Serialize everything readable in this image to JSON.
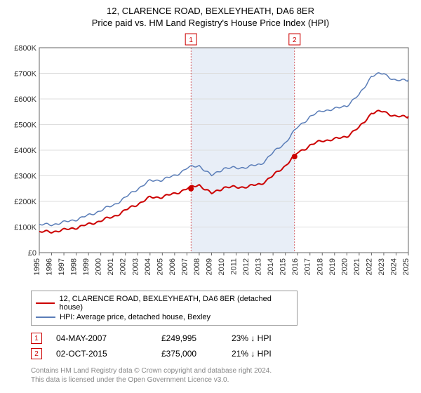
{
  "title": "12, CLARENCE ROAD, BEXLEYHEATH, DA6 8ER",
  "subtitle": "Price paid vs. HM Land Registry's House Price Index (HPI)",
  "chart": {
    "type": "line",
    "background_color": "#ffffff",
    "plot_border_color": "#666666",
    "gridline_color": "#dddddd",
    "highlight_band_color": "#e8eef7",
    "x_axis": {
      "years": [
        1995,
        1996,
        1997,
        1998,
        1999,
        2000,
        2001,
        2002,
        2003,
        2004,
        2005,
        2006,
        2007,
        2008,
        2009,
        2010,
        2011,
        2012,
        2013,
        2014,
        2015,
        2016,
        2017,
        2018,
        2019,
        2020,
        2021,
        2022,
        2023,
        2024,
        2025
      ],
      "label_fontsize": 11,
      "label_color": "#333333"
    },
    "y_axis": {
      "min": 0,
      "max": 800000,
      "tick_step": 100000,
      "tick_labels": [
        "£0",
        "£100K",
        "£200K",
        "£300K",
        "£400K",
        "£500K",
        "£600K",
        "£700K",
        "£800K"
      ],
      "label_fontsize": 11,
      "label_color": "#333333"
    },
    "highlight_band": {
      "from_year": 2007.33,
      "to_year": 2015.75
    },
    "series": [
      {
        "name": "HPI: Average price, detached house, Bexley",
        "color": "#5a7db8",
        "line_width": 1.5,
        "values": [
          [
            1995,
            108000
          ],
          [
            1996,
            110000
          ],
          [
            1997,
            118000
          ],
          [
            1998,
            130000
          ],
          [
            1999,
            145000
          ],
          [
            2000,
            165000
          ],
          [
            2001,
            185000
          ],
          [
            2002,
            215000
          ],
          [
            2003,
            250000
          ],
          [
            2004,
            280000
          ],
          [
            2005,
            285000
          ],
          [
            2006,
            300000
          ],
          [
            2007,
            330000
          ],
          [
            2008,
            340000
          ],
          [
            2009,
            300000
          ],
          [
            2010,
            330000
          ],
          [
            2011,
            330000
          ],
          [
            2012,
            335000
          ],
          [
            2013,
            345000
          ],
          [
            2014,
            390000
          ],
          [
            2015,
            430000
          ],
          [
            2016,
            490000
          ],
          [
            2017,
            530000
          ],
          [
            2018,
            555000
          ],
          [
            2019,
            560000
          ],
          [
            2020,
            575000
          ],
          [
            2021,
            615000
          ],
          [
            2022,
            690000
          ],
          [
            2023,
            700000
          ],
          [
            2024,
            670000
          ],
          [
            2025,
            675000
          ]
        ]
      },
      {
        "name": "12, CLARENCE ROAD, BEXLEYHEATH, DA6 8ER (detached house)",
        "color": "#cc0000",
        "line_width": 2,
        "values": [
          [
            1995,
            80000
          ],
          [
            1996,
            82000
          ],
          [
            1997,
            88000
          ],
          [
            1998,
            98000
          ],
          [
            1999,
            110000
          ],
          [
            2000,
            125000
          ],
          [
            2001,
            140000
          ],
          [
            2002,
            165000
          ],
          [
            2003,
            190000
          ],
          [
            2004,
            215000
          ],
          [
            2005,
            218000
          ],
          [
            2006,
            230000
          ],
          [
            2007,
            250000
          ],
          [
            2008,
            265000
          ],
          [
            2009,
            230000
          ],
          [
            2010,
            255000
          ],
          [
            2011,
            255000
          ],
          [
            2012,
            258000
          ],
          [
            2013,
            268000
          ],
          [
            2014,
            300000
          ],
          [
            2015,
            340000
          ],
          [
            2016,
            390000
          ],
          [
            2017,
            418000
          ],
          [
            2018,
            438000
          ],
          [
            2019,
            442000
          ],
          [
            2020,
            455000
          ],
          [
            2021,
            488000
          ],
          [
            2022,
            545000
          ],
          [
            2023,
            552000
          ],
          [
            2024,
            530000
          ],
          [
            2025,
            532000
          ]
        ]
      }
    ],
    "markers": [
      {
        "n": "1",
        "year": 2007.33,
        "value": 249995,
        "color": "#cc0000"
      },
      {
        "n": "2",
        "year": 2015.75,
        "value": 375000,
        "color": "#cc0000"
      }
    ],
    "marker_label_boxes": [
      {
        "n": "1",
        "year": 2007.33,
        "color": "#cc0000"
      },
      {
        "n": "2",
        "year": 2015.75,
        "color": "#cc0000"
      }
    ]
  },
  "legend": {
    "items": [
      {
        "color": "#cc0000",
        "label": "12, CLARENCE ROAD, BEXLEYHEATH, DA6 8ER (detached house)"
      },
      {
        "color": "#5a7db8",
        "label": "HPI: Average price, detached house, Bexley"
      }
    ]
  },
  "sales": [
    {
      "n": "1",
      "color": "#cc0000",
      "date": "04-MAY-2007",
      "price": "£249,995",
      "diff": "23% ↓ HPI"
    },
    {
      "n": "2",
      "color": "#cc0000",
      "date": "02-OCT-2015",
      "price": "£375,000",
      "diff": "21% ↓ HPI"
    }
  ],
  "footer": {
    "line1": "Contains HM Land Registry data © Crown copyright and database right 2024.",
    "line2": "This data is licensed under the Open Government Licence v3.0."
  }
}
